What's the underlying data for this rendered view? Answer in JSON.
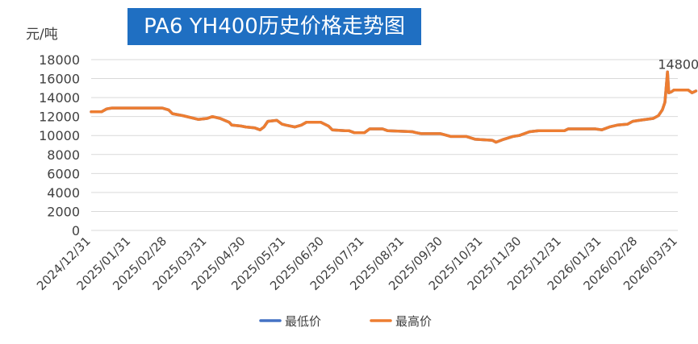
{
  "chart_data": {
    "type": "line",
    "title": "PA6 YH400历史价格走势图",
    "unit_label": "元/吨",
    "ylim": [
      0,
      18000
    ],
    "yticks": [
      0,
      2000,
      4000,
      6000,
      8000,
      10000,
      12000,
      14000,
      16000,
      18000
    ],
    "ytick_labels": [
      "0",
      "2000",
      "4000",
      "6000",
      "8000",
      "10000",
      "12000",
      "14000",
      "16000",
      "18000"
    ],
    "x_start": "2024-12-31",
    "x_end": "2026-03-31",
    "xtick_dates": [
      "2024-12-31",
      "2025-01-31",
      "2025-02-28",
      "2025-03-31",
      "2025-04-30",
      "2025-05-31",
      "2025-06-30",
      "2025-07-31",
      "2025-08-31",
      "2025-09-30",
      "2025-10-31",
      "2025-11-30",
      "2025-12-31",
      "2026-01-31",
      "2026-02-28",
      "2026-03-31"
    ],
    "xtick_labels": [
      "2024/12/31",
      "2025/01/31",
      "2025/02/28",
      "2025/03/31",
      "2025/04/30",
      "2025/05/31",
      "2025/06/30",
      "2025/07/31",
      "2025/08/31",
      "2025/09/30",
      "2025/10/31",
      "2025/11/30",
      "2025/12/31",
      "2026/01/31",
      "2026/02/28",
      "2026/03/31"
    ],
    "grid": true,
    "legend_position": "bottom",
    "series": [
      {
        "name": "最低价",
        "color": "#4472c4",
        "points": [
          [
            "2024-12-31",
            12500
          ],
          [
            "2025-01-08",
            12500
          ],
          [
            "2025-01-12",
            12800
          ],
          [
            "2025-01-16",
            12900
          ],
          [
            "2025-02-24",
            12900
          ],
          [
            "2025-03-01",
            12700
          ],
          [
            "2025-03-04",
            12300
          ],
          [
            "2025-03-12",
            12100
          ],
          [
            "2025-03-24",
            11700
          ],
          [
            "2025-03-31",
            11800
          ],
          [
            "2025-04-04",
            12000
          ],
          [
            "2025-04-10",
            11800
          ],
          [
            "2025-04-17",
            11400
          ],
          [
            "2025-04-19",
            11100
          ],
          [
            "2025-04-26",
            11000
          ],
          [
            "2025-04-30",
            10900
          ],
          [
            "2025-05-07",
            10800
          ],
          [
            "2025-05-11",
            10600
          ],
          [
            "2025-05-14",
            10900
          ],
          [
            "2025-05-17",
            11500
          ],
          [
            "2025-05-24",
            11600
          ],
          [
            "2025-05-28",
            11200
          ],
          [
            "2025-05-31",
            11100
          ],
          [
            "2025-06-07",
            10900
          ],
          [
            "2025-06-12",
            11100
          ],
          [
            "2025-06-16",
            11400
          ],
          [
            "2025-06-27",
            11400
          ],
          [
            "2025-07-03",
            11000
          ],
          [
            "2025-07-06",
            10600
          ],
          [
            "2025-07-16",
            10500
          ],
          [
            "2025-07-19",
            10500
          ],
          [
            "2025-07-23",
            10300
          ],
          [
            "2025-07-31",
            10300
          ],
          [
            "2025-08-04",
            10700
          ],
          [
            "2025-08-14",
            10700
          ],
          [
            "2025-08-18",
            10500
          ],
          [
            "2025-09-06",
            10400
          ],
          [
            "2025-09-09",
            10300
          ],
          [
            "2025-09-13",
            10200
          ],
          [
            "2025-09-28",
            10200
          ],
          [
            "2025-10-06",
            9900
          ],
          [
            "2025-10-18",
            9900
          ],
          [
            "2025-10-25",
            9600
          ],
          [
            "2025-11-07",
            9500
          ],
          [
            "2025-11-10",
            9300
          ],
          [
            "2025-11-16",
            9600
          ],
          [
            "2025-11-23",
            9900
          ],
          [
            "2025-11-28",
            10000
          ],
          [
            "2025-12-06",
            10400
          ],
          [
            "2025-12-13",
            10500
          ],
          [
            "2026-01-02",
            10500
          ],
          [
            "2026-01-05",
            10700
          ],
          [
            "2026-01-26",
            10700
          ],
          [
            "2026-01-31",
            10600
          ],
          [
            "2026-02-06",
            10900
          ],
          [
            "2026-02-12",
            11100
          ],
          [
            "2026-02-20",
            11200
          ],
          [
            "2026-02-24",
            11500
          ],
          [
            "2026-03-01",
            11600
          ],
          [
            "2026-03-12",
            11800
          ],
          [
            "2026-03-16",
            12100
          ],
          [
            "2026-03-19",
            12700
          ],
          [
            "2026-03-21",
            13500
          ],
          [
            "2026-03-23",
            16700
          ],
          [
            "2026-03-24",
            14500
          ],
          [
            "2026-03-26",
            14600
          ],
          [
            "2026-03-28",
            14800
          ],
          [
            "2026-04-08",
            14800
          ],
          [
            "2026-04-11",
            14500
          ],
          [
            "2026-04-14",
            14700
          ]
        ]
      },
      {
        "name": "最高价",
        "color": "#ed7d31",
        "points": [
          [
            "2024-12-31",
            12500
          ],
          [
            "2025-01-08",
            12500
          ],
          [
            "2025-01-12",
            12800
          ],
          [
            "2025-01-16",
            12900
          ],
          [
            "2025-02-24",
            12900
          ],
          [
            "2025-03-01",
            12700
          ],
          [
            "2025-03-04",
            12300
          ],
          [
            "2025-03-12",
            12100
          ],
          [
            "2025-03-24",
            11700
          ],
          [
            "2025-03-31",
            11800
          ],
          [
            "2025-04-04",
            12000
          ],
          [
            "2025-04-10",
            11800
          ],
          [
            "2025-04-17",
            11400
          ],
          [
            "2025-04-19",
            11100
          ],
          [
            "2025-04-26",
            11000
          ],
          [
            "2025-04-30",
            10900
          ],
          [
            "2025-05-07",
            10800
          ],
          [
            "2025-05-11",
            10600
          ],
          [
            "2025-05-14",
            10900
          ],
          [
            "2025-05-17",
            11500
          ],
          [
            "2025-05-24",
            11600
          ],
          [
            "2025-05-28",
            11200
          ],
          [
            "2025-05-31",
            11100
          ],
          [
            "2025-06-07",
            10900
          ],
          [
            "2025-06-12",
            11100
          ],
          [
            "2025-06-16",
            11400
          ],
          [
            "2025-06-27",
            11400
          ],
          [
            "2025-07-03",
            11000
          ],
          [
            "2025-07-06",
            10600
          ],
          [
            "2025-07-16",
            10500
          ],
          [
            "2025-07-19",
            10500
          ],
          [
            "2025-07-23",
            10300
          ],
          [
            "2025-07-31",
            10300
          ],
          [
            "2025-08-04",
            10700
          ],
          [
            "2025-08-14",
            10700
          ],
          [
            "2025-08-18",
            10500
          ],
          [
            "2025-09-06",
            10400
          ],
          [
            "2025-09-09",
            10300
          ],
          [
            "2025-09-13",
            10200
          ],
          [
            "2025-09-28",
            10200
          ],
          [
            "2025-10-06",
            9900
          ],
          [
            "2025-10-18",
            9900
          ],
          [
            "2025-10-25",
            9600
          ],
          [
            "2025-11-07",
            9500
          ],
          [
            "2025-11-10",
            9300
          ],
          [
            "2025-11-16",
            9600
          ],
          [
            "2025-11-23",
            9900
          ],
          [
            "2025-11-28",
            10000
          ],
          [
            "2025-12-06",
            10400
          ],
          [
            "2025-12-13",
            10500
          ],
          [
            "2026-01-02",
            10500
          ],
          [
            "2026-01-05",
            10700
          ],
          [
            "2026-01-26",
            10700
          ],
          [
            "2026-01-31",
            10600
          ],
          [
            "2026-02-06",
            10900
          ],
          [
            "2026-02-12",
            11100
          ],
          [
            "2026-02-20",
            11200
          ],
          [
            "2026-02-24",
            11500
          ],
          [
            "2026-03-01",
            11600
          ],
          [
            "2026-03-12",
            11800
          ],
          [
            "2026-03-16",
            12100
          ],
          [
            "2026-03-19",
            12700
          ],
          [
            "2026-03-21",
            13500
          ],
          [
            "2026-03-23",
            16700
          ],
          [
            "2026-03-24",
            14500
          ],
          [
            "2026-03-26",
            14600
          ],
          [
            "2026-03-28",
            14800
          ],
          [
            "2026-04-08",
            14800
          ],
          [
            "2026-04-11",
            14500
          ],
          [
            "2026-04-14",
            14700
          ]
        ]
      }
    ],
    "annotations": [
      {
        "date": "2026-04-08",
        "value": 14800,
        "text": "14800"
      }
    ]
  }
}
